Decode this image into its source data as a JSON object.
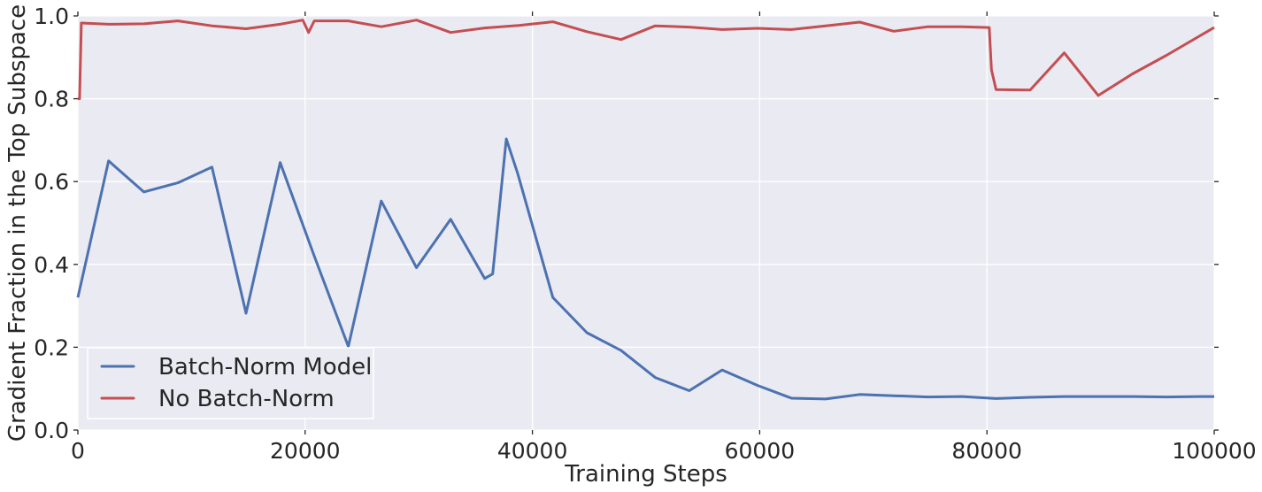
{
  "chart_data": {
    "type": "line",
    "title": "",
    "xlabel": "Training Steps",
    "ylabel": "Gradient Fraction in the Top Subspace",
    "xlim": [
      0,
      100000
    ],
    "ylim": [
      0.0,
      1.0
    ],
    "xticks": [
      0,
      20000,
      40000,
      60000,
      80000,
      100000
    ],
    "xtick_labels": [
      "0",
      "20000",
      "40000",
      "60000",
      "80000",
      "100000"
    ],
    "yticks": [
      0.0,
      0.2,
      0.4,
      0.6,
      0.8,
      1.0
    ],
    "ytick_labels": [
      "0.0",
      "0.2",
      "0.4",
      "0.6",
      "0.8",
      "1.0"
    ],
    "grid": true,
    "legend_position": "lower-left",
    "background_color": "#eaeaf2",
    "series": [
      {
        "name": "Batch-Norm Model",
        "color": "#4c72b0",
        "x": [
          0,
          2700,
          5800,
          8800,
          11800,
          14800,
          17800,
          20800,
          23800,
          26700,
          29800,
          32800,
          35800,
          36500,
          37700,
          38700,
          41800,
          44800,
          47800,
          50800,
          53800,
          56700,
          59800,
          62800,
          65800,
          68800,
          71800,
          74800,
          77800,
          80800,
          83800,
          86800,
          89800,
          92800,
          95800,
          98800,
          100000
        ],
        "y": [
          0.32,
          0.65,
          0.575,
          0.597,
          0.635,
          0.282,
          0.646,
          0.42,
          0.202,
          0.553,
          0.392,
          0.509,
          0.366,
          0.377,
          0.703,
          0.62,
          0.32,
          0.235,
          0.192,
          0.127,
          0.095,
          0.145,
          0.108,
          0.077,
          0.075,
          0.086,
          0.083,
          0.08,
          0.081,
          0.076,
          0.079,
          0.081,
          0.081,
          0.081,
          0.08,
          0.081,
          0.081
        ]
      },
      {
        "name": "No Batch-Norm",
        "color": "#c44e52",
        "x": [
          0,
          150,
          300,
          2700,
          5800,
          8800,
          11800,
          14800,
          17800,
          19800,
          20300,
          20800,
          23800,
          26700,
          29800,
          32800,
          35800,
          38800,
          41800,
          44800,
          47800,
          50800,
          53800,
          56700,
          59800,
          62800,
          65800,
          68800,
          71800,
          74800,
          77800,
          80200,
          80400,
          80800,
          83800,
          86800,
          89800,
          92800,
          95800,
          100000
        ],
        "y": [
          0.8,
          0.8,
          0.983,
          0.98,
          0.981,
          0.988,
          0.976,
          0.969,
          0.98,
          0.99,
          0.96,
          0.988,
          0.988,
          0.974,
          0.99,
          0.96,
          0.971,
          0.977,
          0.986,
          0.962,
          0.943,
          0.976,
          0.973,
          0.967,
          0.97,
          0.967,
          0.976,
          0.985,
          0.963,
          0.974,
          0.974,
          0.972,
          0.87,
          0.822,
          0.821,
          0.911,
          0.808,
          0.86,
          0.905,
          0.972
        ]
      }
    ]
  }
}
